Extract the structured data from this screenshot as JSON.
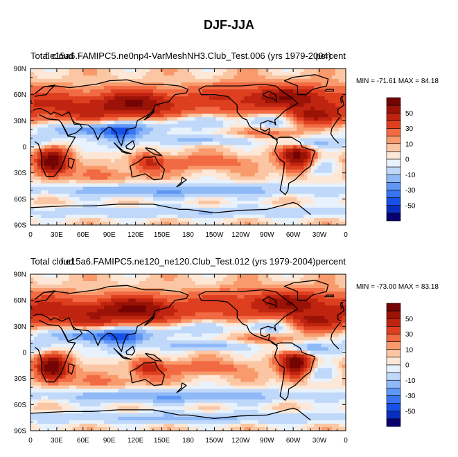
{
  "figure_title": "DJF-JJA",
  "colors": {
    "levels": [
      "#08006e",
      "#0a2ec0",
      "#1650e6",
      "#3874f2",
      "#5f97f5",
      "#8fb9f7",
      "#c0d8fa",
      "#e8f2fc",
      "#fde7d6",
      "#fbc6a3",
      "#f89a6c",
      "#f16a43",
      "#dd3f1f",
      "#bf2410",
      "#9b1306",
      "#740504"
    ],
    "coast": "#000000"
  },
  "panels": [
    {
      "left_label": "Total cloud",
      "center_label": "f.e15a6.FAMIPC5.ne0np4-VarMeshNH3.Club_Test.006 (yrs 1979-2004)",
      "right_label": "percent",
      "stats": "MIN = -71.61 MAX =  84.18"
    },
    {
      "left_label": "Total cloud",
      "center_label": "f.e15a6.FAMIPC5.ne120_ne120.Club_Test.012 (yrs 1979-2004)",
      "right_label": "percent",
      "stats": "MIN = -73.00 MAX =  83.18"
    }
  ],
  "chart_data": [
    {
      "type": "heatmap",
      "title": "f.e15a6.FAMIPC5.ne0np4-VarMeshNH3.Club_Test.006 (yrs 1979-2004)",
      "variable": "Total cloud",
      "units": "percent",
      "min": -71.61,
      "max": 84.18,
      "xlim": [
        0,
        360
      ],
      "ylim": [
        -90,
        90
      ],
      "x_tick_labels": [
        "0",
        "30E",
        "60E",
        "90E",
        "120E",
        "150E",
        "180",
        "150W",
        "120W",
        "90W",
        "60W",
        "30W",
        "0"
      ],
      "y_tick_labels": [
        "90N",
        "60N",
        "30N",
        "0",
        "30S",
        "60S",
        "90S"
      ],
      "colorbar_labels": [
        "50",
        "30",
        "10",
        "0",
        "-10",
        "-30",
        "-50"
      ],
      "colorbar_levels": [
        -70,
        -60,
        -50,
        -40,
        -30,
        -20,
        -10,
        -5,
        0,
        5,
        10,
        20,
        30,
        40,
        50,
        60,
        70
      ],
      "features": [
        {
          "lon": 70,
          "lat": 45,
          "amp": 35,
          "slon": 75,
          "slat": 14
        },
        {
          "lon": 130,
          "lat": 52,
          "amp": 25,
          "slon": 30,
          "slat": 10
        },
        {
          "lon": 250,
          "lat": 55,
          "amp": 30,
          "slon": 45,
          "slat": 12
        },
        {
          "lon": 310,
          "lat": 58,
          "amp": 25,
          "slon": 35,
          "slat": 10
        },
        {
          "lon": 320,
          "lat": 35,
          "amp": 30,
          "slon": 20,
          "slat": 7
        },
        {
          "lon": 25,
          "lat": -18,
          "amp": 65,
          "slon": 13,
          "slat": 11
        },
        {
          "lon": 305,
          "lat": -12,
          "amp": 55,
          "slon": 14,
          "slat": 13
        },
        {
          "lon": 135,
          "lat": -18,
          "amp": 30,
          "slon": 13,
          "slat": 7
        },
        {
          "lon": 200,
          "lat": -18,
          "amp": 20,
          "slon": 30,
          "slat": 6
        },
        {
          "lon": 265,
          "lat": 15,
          "amp": 15,
          "slon": 25,
          "slat": 5
        },
        {
          "lon": 80,
          "lat": 20,
          "amp": -45,
          "slon": 45,
          "slat": 6
        },
        {
          "lon": 105,
          "lat": 10,
          "amp": -30,
          "slon": 15,
          "slat": 10
        },
        {
          "lon": 200,
          "lat": 8,
          "amp": -25,
          "slon": 35,
          "slat": 4
        },
        {
          "lon": 180,
          "lat": 28,
          "amp": -20,
          "slon": 40,
          "slat": 6
        },
        {
          "lon": 270,
          "lat": 30,
          "amp": -25,
          "slon": 20,
          "slat": 6
        },
        {
          "lon": 310,
          "lat": 5,
          "amp": -35,
          "slon": 20,
          "slat": 5
        },
        {
          "lon": 15,
          "lat": 5,
          "amp": -20,
          "slon": 20,
          "slat": 6
        },
        {
          "lon": 160,
          "lat": -50,
          "amp": -30,
          "slon": 120,
          "slat": 6
        },
        {
          "lon": 330,
          "lat": -25,
          "amp": -25,
          "slon": 15,
          "slat": 8
        },
        {
          "lon": 180,
          "lat": -75,
          "amp": -20,
          "slon": 180,
          "slat": 5
        },
        {
          "lon": 100,
          "lat": -35,
          "amp": 12,
          "slon": 30,
          "slat": 8
        }
      ]
    },
    {
      "type": "heatmap",
      "title": "f.e15a6.FAMIPC5.ne120_ne120.Club_Test.012 (yrs 1979-2004)",
      "variable": "Total cloud",
      "units": "percent",
      "min": -73.0,
      "max": 83.18,
      "xlim": [
        0,
        360
      ],
      "ylim": [
        -90,
        90
      ],
      "x_tick_labels": [
        "0",
        "30E",
        "60E",
        "90E",
        "120E",
        "150E",
        "180",
        "150W",
        "120W",
        "90W",
        "60W",
        "30W",
        "0"
      ],
      "y_tick_labels": [
        "90N",
        "60N",
        "30N",
        "0",
        "30S",
        "60S",
        "90S"
      ],
      "colorbar_labels": [
        "50",
        "30",
        "10",
        "0",
        "-10",
        "-30",
        "-50"
      ],
      "colorbar_levels": [
        -70,
        -60,
        -50,
        -40,
        -30,
        -20,
        -10,
        -5,
        0,
        5,
        10,
        20,
        30,
        40,
        50,
        60,
        70
      ],
      "features": [
        {
          "lon": 70,
          "lat": 45,
          "amp": 38,
          "slon": 75,
          "slat": 14
        },
        {
          "lon": 130,
          "lat": 52,
          "amp": 25,
          "slon": 30,
          "slat": 10
        },
        {
          "lon": 250,
          "lat": 55,
          "amp": 28,
          "slon": 45,
          "slat": 12
        },
        {
          "lon": 310,
          "lat": 58,
          "amp": 25,
          "slon": 35,
          "slat": 10
        },
        {
          "lon": 320,
          "lat": 35,
          "amp": 28,
          "slon": 20,
          "slat": 7
        },
        {
          "lon": 25,
          "lat": -18,
          "amp": 65,
          "slon": 13,
          "slat": 11
        },
        {
          "lon": 303,
          "lat": -14,
          "amp": 62,
          "slon": 13,
          "slat": 12
        },
        {
          "lon": 135,
          "lat": -18,
          "amp": 35,
          "slon": 13,
          "slat": 7
        },
        {
          "lon": 200,
          "lat": -18,
          "amp": 18,
          "slon": 30,
          "slat": 6
        },
        {
          "lon": 265,
          "lat": 15,
          "amp": 15,
          "slon": 25,
          "slat": 5
        },
        {
          "lon": 80,
          "lat": 20,
          "amp": -48,
          "slon": 45,
          "slat": 6
        },
        {
          "lon": 105,
          "lat": 10,
          "amp": -28,
          "slon": 15,
          "slat": 10
        },
        {
          "lon": 200,
          "lat": 8,
          "amp": -28,
          "slon": 35,
          "slat": 4
        },
        {
          "lon": 180,
          "lat": 28,
          "amp": -20,
          "slon": 40,
          "slat": 6
        },
        {
          "lon": 270,
          "lat": 30,
          "amp": -25,
          "slon": 20,
          "slat": 6
        },
        {
          "lon": 310,
          "lat": 5,
          "amp": -35,
          "slon": 20,
          "slat": 5
        },
        {
          "lon": 15,
          "lat": 5,
          "amp": -20,
          "slon": 20,
          "slat": 6
        },
        {
          "lon": 160,
          "lat": -50,
          "amp": -30,
          "slon": 120,
          "slat": 6
        },
        {
          "lon": 330,
          "lat": -25,
          "amp": -25,
          "slon": 15,
          "slat": 8
        },
        {
          "lon": 180,
          "lat": -75,
          "amp": -22,
          "slon": 180,
          "slat": 5
        },
        {
          "lon": 100,
          "lat": -35,
          "amp": 12,
          "slon": 30,
          "slat": 8
        }
      ]
    }
  ]
}
